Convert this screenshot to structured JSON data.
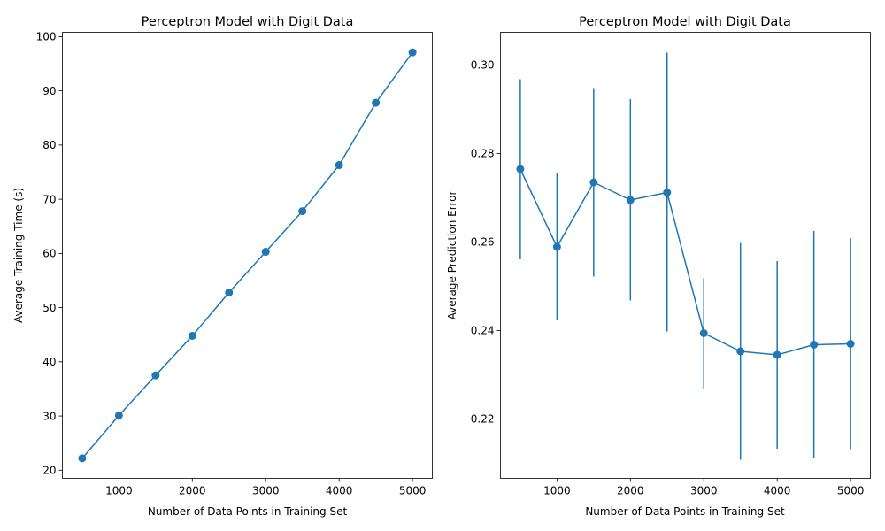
{
  "chart_data": [
    {
      "type": "line",
      "title": "Perceptron Model with Digit Data",
      "xlabel": "Number of Data Points in Training Set",
      "ylabel": "Average Training Time (s)",
      "xlim": [
        230,
        5270
      ],
      "ylim": [
        18.5,
        100.8
      ],
      "xticks": [
        1000,
        2000,
        3000,
        4000,
        5000
      ],
      "xtick_labels": [
        "1000",
        "2000",
        "3000",
        "4000",
        "5000"
      ],
      "yticks": [
        20,
        30,
        40,
        50,
        60,
        70,
        80,
        90,
        100
      ],
      "ytick_labels": [
        "20",
        "30",
        "40",
        "50",
        "60",
        "70",
        "80",
        "90",
        "100"
      ],
      "grid": false,
      "color": "#1f77b4",
      "marker": "circle",
      "series": [
        {
          "x": [
            500,
            1000,
            1500,
            2000,
            2500,
            3000,
            3500,
            4000,
            4500,
            5000
          ],
          "values": [
            22.2,
            30.1,
            37.5,
            44.8,
            52.8,
            60.3,
            67.8,
            76.3,
            87.8,
            97.1
          ]
        }
      ]
    },
    {
      "type": "line",
      "title": "Perceptron Model with Digit Data",
      "xlabel": "Number of Data Points in Training Set",
      "ylabel": "Average Prediction Error",
      "xlim": [
        230,
        5270
      ],
      "ylim": [
        0.2066,
        0.3074
      ],
      "xticks": [
        1000,
        2000,
        3000,
        4000,
        5000
      ],
      "xtick_labels": [
        "1000",
        "2000",
        "3000",
        "4000",
        "5000"
      ],
      "yticks": [
        0.22,
        0.24,
        0.26,
        0.28,
        0.3
      ],
      "ytick_labels": [
        "0.22",
        "0.24",
        "0.26",
        "0.28",
        "0.30"
      ],
      "grid": false,
      "color": "#1f77b4",
      "marker": "circle",
      "error_bars": "vertical",
      "series": [
        {
          "x": [
            500,
            1000,
            1500,
            2000,
            2500,
            3000,
            3500,
            4000,
            4500,
            5000
          ],
          "values": [
            0.2765,
            0.2589,
            0.2735,
            0.2695,
            0.2712,
            0.2394,
            0.2353,
            0.2345,
            0.2368,
            0.237
          ],
          "err_low": [
            0.2561,
            0.2423,
            0.2522,
            0.2468,
            0.2398,
            0.2269,
            0.2108,
            0.2133,
            0.2112,
            0.2132
          ],
          "err_high": [
            0.2968,
            0.2756,
            0.2948,
            0.2923,
            0.3028,
            0.2518,
            0.2598,
            0.2557,
            0.2625,
            0.2609
          ]
        }
      ]
    }
  ]
}
